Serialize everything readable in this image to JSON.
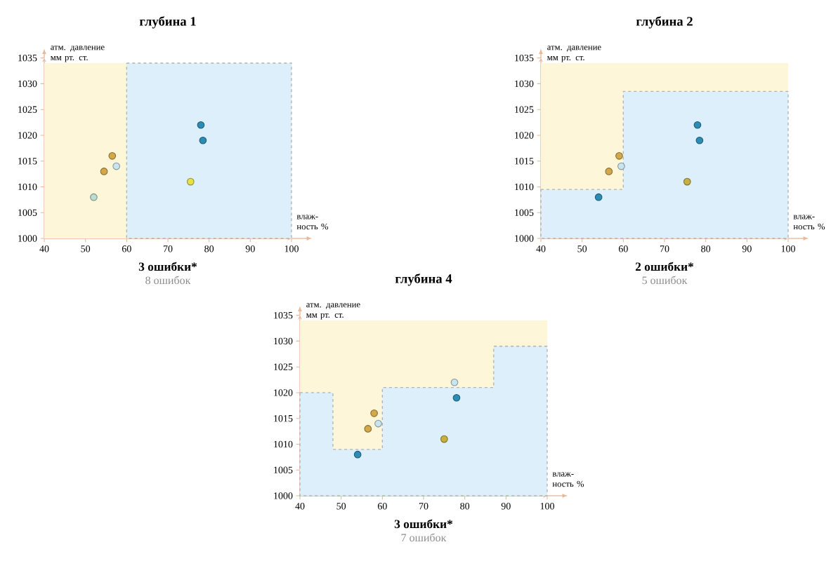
{
  "chart_data": [
    {
      "type": "scatter",
      "title": "глубина 1",
      "xlabel": "влаж-ность %",
      "ylabel": "атм. давление мм рт. ст.",
      "xlim": [
        40,
        100
      ],
      "ylim": [
        1000,
        1035
      ],
      "xticks": [
        40,
        50,
        60,
        70,
        80,
        90,
        100
      ],
      "yticks": [
        1000,
        1005,
        1010,
        1015,
        1020,
        1025,
        1030,
        1035
      ],
      "bands": [
        {
          "axis": "y",
          "from": 1000,
          "to": 1034,
          "color": "#fdf6d8"
        }
      ],
      "series": [
        {
          "type": "area",
          "color": "#ddeffa",
          "line_style": "dashed",
          "x": [
            60,
            100
          ],
          "values": [
            1034,
            1034
          ]
        },
        {
          "marker": "circle",
          "x": [
            52,
            54.5,
            56.5,
            57.5,
            75.5,
            78,
            78.5
          ],
          "values": [
            1008,
            1013,
            1016,
            1014,
            1011,
            1022,
            1019
          ],
          "colors": [
            "#bcdccf",
            "#d2a84a",
            "#d2a84a",
            "#c8e4ee",
            "#e6e04a",
            "#2c8cb4",
            "#2c8cb4"
          ]
        }
      ],
      "annotations": [
        "3 ошибки*",
        "8 ошибок"
      ]
    },
    {
      "type": "scatter",
      "title": "глубина 2",
      "xlabel": "влаж-ность %",
      "ylabel": "атм. давление мм рт. ст.",
      "xlim": [
        40,
        100
      ],
      "ylim": [
        1000,
        1035
      ],
      "xticks": [
        40,
        50,
        60,
        70,
        80,
        90,
        100
      ],
      "yticks": [
        1000,
        1005,
        1010,
        1015,
        1020,
        1025,
        1030,
        1035
      ],
      "bands": [
        {
          "axis": "y",
          "from": 1000,
          "to": 1034,
          "color": "#fdf6d8"
        }
      ],
      "series": [
        {
          "type": "area",
          "color": "#ddeffa",
          "line_style": "dashed",
          "x": [
            40,
            60,
            60,
            100
          ],
          "values": [
            1009.5,
            1009.5,
            1028.5,
            1028.5
          ]
        },
        {
          "marker": "circle",
          "x": [
            54,
            56.5,
            59,
            59.5,
            75.5,
            78,
            78.5
          ],
          "values": [
            1008,
            1013,
            1016,
            1014,
            1011,
            1022,
            1019
          ],
          "colors": [
            "#2c8cb4",
            "#d2a84a",
            "#d2a84a",
            "#c8e4ee",
            "#c8b040",
            "#2c8cb4",
            "#2c8cb4"
          ]
        }
      ],
      "annotations": [
        "2 ошибки*",
        "5 ошибок"
      ]
    },
    {
      "type": "scatter",
      "title": "глубина 4",
      "xlabel": "влаж-ность %",
      "ylabel": "атм. давление мм рт. ст.",
      "xlim": [
        40,
        100
      ],
      "ylim": [
        1000,
        1035
      ],
      "xticks": [
        40,
        50,
        60,
        70,
        80,
        90,
        100
      ],
      "yticks": [
        1000,
        1005,
        1010,
        1015,
        1020,
        1025,
        1030,
        1035
      ],
      "bands": [
        {
          "axis": "y",
          "from": 1000,
          "to": 1034,
          "color": "#fdf6d8"
        }
      ],
      "series": [
        {
          "type": "area",
          "color": "#ddeffa",
          "line_style": "dashed",
          "x": [
            40,
            48,
            48,
            60,
            60,
            87,
            87,
            100
          ],
          "values": [
            1020,
            1020,
            1009,
            1009,
            1021,
            1021,
            1029,
            1029
          ]
        },
        {
          "marker": "circle",
          "x": [
            54,
            56.5,
            58,
            59,
            75,
            77.5,
            78
          ],
          "values": [
            1008,
            1013,
            1016,
            1014,
            1011,
            1022,
            1019
          ],
          "colors": [
            "#2c8cb4",
            "#d2a84a",
            "#d2a84a",
            "#c8e4ee",
            "#c8b040",
            "#c8e4ee",
            "#2c8cb4"
          ]
        }
      ],
      "annotations": [
        "3 ошибки*",
        "7 ошибок"
      ]
    }
  ]
}
